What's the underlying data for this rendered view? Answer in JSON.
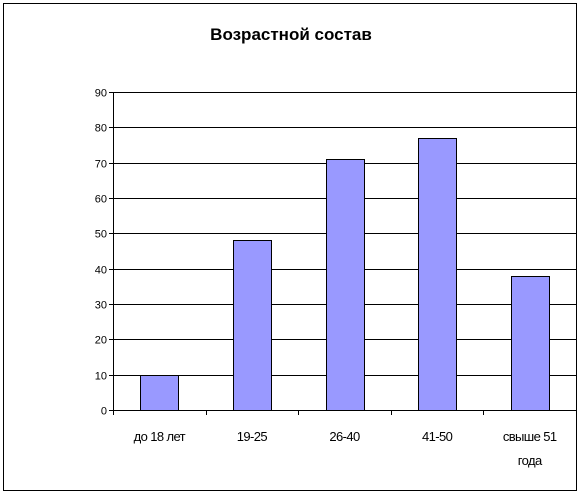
{
  "chart_data": {
    "type": "bar",
    "title": "Возрастной состав",
    "categories": [
      [
        "до 18 лет"
      ],
      [
        "19-25"
      ],
      [
        "26-40"
      ],
      [
        "41-50"
      ],
      [
        "свыше 51",
        "года"
      ]
    ],
    "values": [
      10,
      48,
      71,
      77,
      38
    ],
    "ylim": [
      0,
      90
    ],
    "yticks": [
      0,
      10,
      20,
      30,
      40,
      50,
      60,
      70,
      80,
      90
    ],
    "grid": true,
    "bar_color": "#9999ff"
  }
}
